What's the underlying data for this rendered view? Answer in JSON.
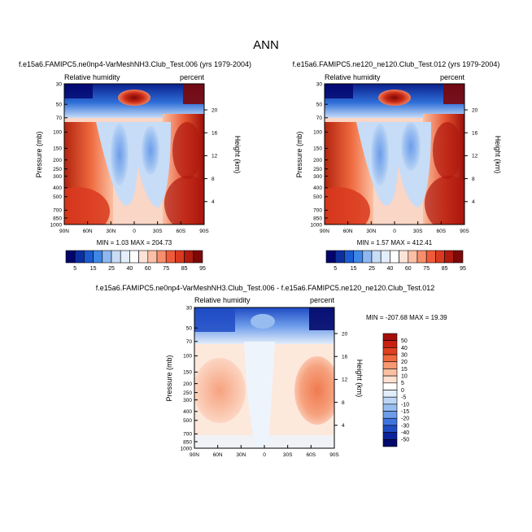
{
  "figure": {
    "title": "ANN"
  },
  "chart_data": [
    {
      "type": "heatmap",
      "title": "f.e15a6.FAMIPC5.ne0np4-VarMeshNH3.Club_Test.006 (yrs 1979-2004)",
      "left_label": "Relative humidity",
      "right_label": "percent",
      "xlabel": "",
      "ylabel": "Pressure (mb)",
      "y2label": "Height (km)",
      "x_ticks": [
        "90N",
        "60N",
        "30N",
        "0",
        "30S",
        "60S",
        "90S"
      ],
      "y_ticks": [
        "30",
        "50",
        "70",
        "100",
        "150",
        "200",
        "250",
        "300",
        "400",
        "500",
        "700",
        "850",
        "1000"
      ],
      "y2_ticks": [
        "20",
        "16",
        "12",
        "8",
        "4"
      ],
      "stats": "MIN =  1.03  MAX = 204.73",
      "colorbar": {
        "levels": [
          "5",
          "15",
          "25",
          "40",
          "60",
          "75",
          "85",
          "95"
        ],
        "colors": [
          "#03046b",
          "#0c2fa0",
          "#1b5ad0",
          "#3f86e6",
          "#8eb7f0",
          "#c7dcf7",
          "#e3eefa",
          "#ffffff",
          "#fde3d7",
          "#fbbfa6",
          "#f78f6c",
          "#ef5b3a",
          "#d93a1f",
          "#b11a0f",
          "#7d0808"
        ]
      }
    },
    {
      "type": "heatmap",
      "title": "f.e15a6.FAMIPC5.ne120_ne120.Club_Test.012 (yrs 1979-2004)",
      "left_label": "Relative humidity",
      "right_label": "percent",
      "xlabel": "",
      "ylabel": "Pressure (mb)",
      "y2label": "Height (km)",
      "x_ticks": [
        "90N",
        "60N",
        "30N",
        "0",
        "30S",
        "60S",
        "90S"
      ],
      "y_ticks": [
        "30",
        "50",
        "70",
        "100",
        "150",
        "200",
        "250",
        "300",
        "400",
        "500",
        "700",
        "850",
        "1000"
      ],
      "y2_ticks": [
        "20",
        "16",
        "12",
        "8",
        "4"
      ],
      "stats": "MIN =  1.57  MAX = 412.41",
      "colorbar": {
        "levels": [
          "5",
          "15",
          "25",
          "40",
          "60",
          "75",
          "85",
          "95"
        ],
        "colors": [
          "#03046b",
          "#0c2fa0",
          "#1b5ad0",
          "#3f86e6",
          "#8eb7f0",
          "#c7dcf7",
          "#e3eefa",
          "#ffffff",
          "#fde3d7",
          "#fbbfa6",
          "#f78f6c",
          "#ef5b3a",
          "#d93a1f",
          "#b11a0f",
          "#7d0808"
        ]
      }
    },
    {
      "type": "heatmap",
      "title": "f.e15a6.FAMIPC5.ne0np4-VarMeshNH3.Club_Test.006 - f.e15a6.FAMIPC5.ne120_ne120.Club_Test.012",
      "left_label": "Relative humidity",
      "right_label": "percent",
      "xlabel": "",
      "ylabel": "Pressure (mb)",
      "y2label": "Height (km)",
      "x_ticks": [
        "90N",
        "60N",
        "30N",
        "0",
        "30S",
        "60S",
        "90S"
      ],
      "y_ticks": [
        "30",
        "50",
        "70",
        "100",
        "150",
        "200",
        "250",
        "300",
        "400",
        "500",
        "700",
        "850",
        "1000"
      ],
      "y2_ticks": [
        "20",
        "16",
        "12",
        "8",
        "4"
      ],
      "stats": "MIN = -207.68  MAX =  19.39",
      "colorbar": {
        "levels": [
          "50",
          "40",
          "30",
          "20",
          "15",
          "10",
          "5",
          "0",
          "-5",
          "-10",
          "-15",
          "-20",
          "-30",
          "-40",
          "-50"
        ],
        "colors": [
          "#a50f0a",
          "#c81f10",
          "#e0401f",
          "#ef6a3f",
          "#f69872",
          "#fbc0a2",
          "#fde0d0",
          "#ffffff",
          "#e2edfa",
          "#bdd6f5",
          "#97bdf0",
          "#6d9cea",
          "#3f74dd",
          "#1f4bc4",
          "#0b239a",
          "#040a6b"
        ]
      }
    }
  ]
}
